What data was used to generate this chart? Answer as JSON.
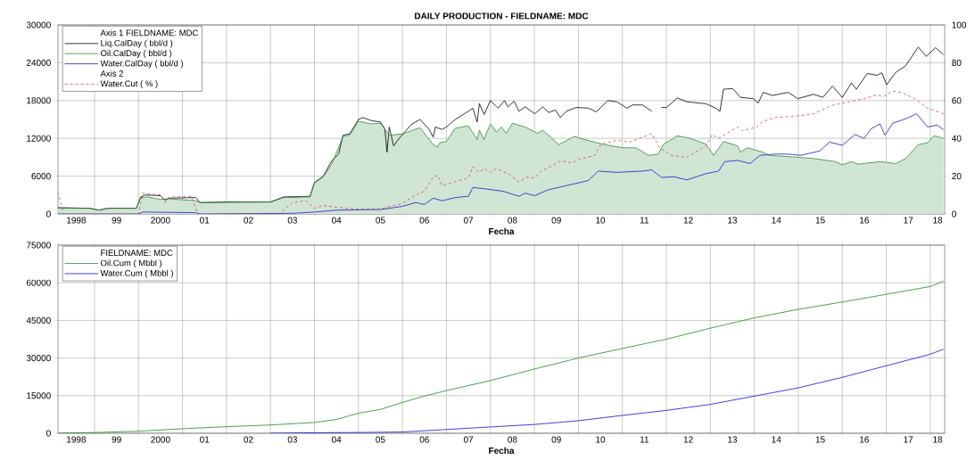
{
  "chart_data": [
    {
      "type": "line",
      "title": "DAILY PRODUCTION  -  FIELDNAME: MDC",
      "xlabel": "Fecha",
      "legend_title": "Axis 1  FIELDNAME: MDC",
      "annotations": [
        "Axis 2"
      ],
      "grid": true,
      "legend": "top left",
      "xlim": [
        "1998-03-02",
        "2018-04-29"
      ],
      "ylim": [
        0,
        30000
      ],
      "y2lim": [
        0,
        100
      ],
      "xticks": [
        {
          "value": "1999",
          "label": null
        },
        {
          "value": "2000",
          "label": null
        },
        {
          "value": "2001",
          "label": null
        },
        {
          "value": "2002",
          "label": null
        },
        {
          "value": "2003",
          "label": null
        },
        {
          "value": "2004",
          "label": null
        },
        {
          "value": "2005",
          "label": null
        },
        {
          "value": "2006",
          "label": null
        },
        {
          "value": "2007",
          "label": null
        },
        {
          "value": "2008",
          "label": null
        },
        {
          "value": "2009",
          "label": null
        },
        {
          "value": "2010",
          "label": null
        },
        {
          "value": "2011",
          "label": null
        },
        {
          "value": "2012",
          "label": null
        },
        {
          "value": "2013",
          "label": null
        },
        {
          "value": "2014",
          "label": null
        },
        {
          "value": "2015",
          "label": null
        },
        {
          "value": "2016",
          "label": null
        },
        {
          "value": "2017",
          "label": null
        },
        {
          "value": "2018",
          "label": null
        },
        {
          "value": "1998-08",
          "label": "1998"
        },
        {
          "value": "1999-07",
          "label": "99"
        },
        {
          "value": "2000-07",
          "label": "2000"
        },
        {
          "value": "2001-07",
          "label": "01"
        },
        {
          "value": "2002-07",
          "label": "02"
        },
        {
          "value": "2003-07",
          "label": "03"
        },
        {
          "value": "2004-07",
          "label": "04"
        },
        {
          "value": "2005-07",
          "label": "05"
        },
        {
          "value": "2006-07",
          "label": "06"
        },
        {
          "value": "2007-07",
          "label": "07"
        },
        {
          "value": "2008-07",
          "label": "08"
        },
        {
          "value": "2009-07",
          "label": "09"
        },
        {
          "value": "2010-07",
          "label": "10"
        },
        {
          "value": "2011-07",
          "label": "11"
        },
        {
          "value": "2012-07",
          "label": "12"
        },
        {
          "value": "2013-07",
          "label": "13"
        },
        {
          "value": "2014-07",
          "label": "14"
        },
        {
          "value": "2015-07",
          "label": "15"
        },
        {
          "value": "2016-07",
          "label": "16"
        },
        {
          "value": "2017-07",
          "label": "17"
        },
        {
          "value": "2018-03",
          "label": "18"
        }
      ],
      "yticks": [
        0,
        6000,
        12000,
        18000,
        24000,
        30000
      ],
      "y2ticks": [
        0,
        20,
        40,
        60,
        80,
        100
      ],
      "series": [
        {
          "name": "Liq.CalDay ( bbl/d )",
          "color": "#000000",
          "x": [
            "1998-03-02",
            "1998-11-25",
            "1999-02-07",
            "1999-04-19",
            "1999-12-13",
            "2000-01-19",
            "2000-02-25",
            "2000-07-01",
            "2000-08-07",
            "2000-09-13",
            "2001-04-19",
            "2001-05-25",
            "2002-01-01",
            "2003-01-01",
            "2003-04-19",
            "2003-11-25",
            "2004-01-01",
            "2004-03-13",
            "2004-05-25",
            "2004-07-19",
            "2004-08-25",
            "2004-10-19",
            "2005-01-01",
            "2005-02-07",
            "2005-04-19",
            "2005-07-01",
            "2005-08-07",
            "2005-08-25",
            "2005-09-13",
            "2005-10-19",
            "2005-12-13",
            "2006-03-13",
            "2006-05-25",
            "2006-08-07",
            "2006-09-13",
            "2006-10-01",
            "2006-11-25",
            "2007-01-01",
            "2007-03-13",
            "2007-07-01",
            "2007-08-07",
            "2007-09-13",
            "2007-10-01",
            "2007-11-10",
            "2008-01-01",
            "2008-03-05",
            "2008-04-26",
            "2008-05-25",
            "2008-07-15",
            "2008-08-25",
            "2008-10-15",
            "2009-01-04",
            "2009-03-09",
            "2009-04-29",
            "2009-06-23",
            "2009-08-03",
            "2009-09-23",
            "2009-12-13",
            "2010-03-23",
            "2010-05-28",
            "2010-09-02",
            "2010-11-17",
            "2011-02-07",
            "2011-03-27",
            "2011-06-16",
            "2011-09-02",
            "2011-10-11",
            "2011-11-21",
            "2012-01-01",
            "2012-04-01",
            "2012-06-20",
            "2012-11-25",
            "2013-02-14",
            "2013-03-20",
            "2013-04-19",
            "2013-07-04",
            "2013-09-09",
            "2013-12-23",
            "2014-02-03",
            "2014-03-13",
            "2014-05-28",
            "2014-10-08",
            "2014-12-27",
            "2015-05-07",
            "2015-07-22",
            "2015-10-11",
            "2016-01-01",
            "2016-03-16",
            "2016-04-26",
            "2016-07-26",
            "2016-10-15",
            "2016-11-25",
            "2017-01-04",
            "2017-03-20",
            "2017-06-09",
            "2017-09-23",
            "2017-11-28",
            "2018-02-14",
            "2018-04-19"
          ],
          "values": [
            1000,
            900,
            600,
            900,
            900,
            2700,
            3000,
            2900,
            2200,
            2500,
            2600,
            1800,
            1900,
            1900,
            2700,
            2800,
            5000,
            6000,
            8500,
            9500,
            12500,
            12700,
            15000,
            15300,
            14800,
            14600,
            13500,
            9800,
            13800,
            10800,
            12200,
            14200,
            15000,
            13500,
            12200,
            13800,
            13400,
            13800,
            15000,
            16300,
            16800,
            14600,
            17500,
            15800,
            18000,
            16800,
            18000,
            17000,
            17900,
            16300,
            17000,
            15900,
            17000,
            16100,
            16500,
            15300,
            16300,
            16900,
            16800,
            16200,
            18000,
            17800,
            16800,
            17300,
            17300,
            16300,
            null,
            16900,
            16900,
            18400,
            17800,
            17500,
            16800,
            16300,
            19800,
            19900,
            18500,
            18300,
            17600,
            19300,
            18800,
            19300,
            18300,
            19000,
            18500,
            20300,
            18500,
            20800,
            19800,
            22300,
            22000,
            22400,
            20500,
            22500,
            23500,
            26500,
            25000,
            26400,
            25300
          ]
        },
        {
          "name": "Oil.CalDay ( bbl/d )",
          "color": "#2e8b3a",
          "type": "area",
          "x": [
            "1998-03-02",
            "1998-11-25",
            "1999-02-07",
            "1999-04-19",
            "1999-12-13",
            "2000-01-19",
            "2000-03-13",
            "2000-07-01",
            "2000-09-13",
            "2001-04-19",
            "2001-05-25",
            "2003-01-01",
            "2003-04-19",
            "2003-11-25",
            "2004-01-01",
            "2004-03-13",
            "2004-05-25",
            "2004-08-25",
            "2004-10-19",
            "2005-01-01",
            "2005-04-19",
            "2005-07-01",
            "2005-09-13",
            "2006-01-01",
            "2006-05-25",
            "2006-09-13",
            "2006-10-19",
            "2006-11-07",
            "2007-01-01",
            "2007-03-13",
            "2007-07-01",
            "2007-09-13",
            "2007-10-01",
            "2007-11-07",
            "2008-01-01",
            "2008-02-21",
            "2008-04-01",
            "2008-05-10",
            "2008-07-01",
            "2008-10-15",
            "2009-01-29",
            "2009-03-09",
            "2009-05-25",
            "2009-07-19",
            "2009-11-28",
            "2010-02-25",
            "2010-08-03",
            "2011-01-11",
            "2011-04-22",
            "2011-08-07",
            "2011-10-26",
            "2011-12-05",
            "2012-04-01",
            "2012-07-15",
            "2012-11-25",
            "2013-01-29",
            "2013-04-19",
            "2013-08-14",
            "2013-09-09",
            "2013-11-03",
            "2014-03-13",
            "2014-05-03",
            "2014-12-27",
            "2015-05-07",
            "2015-11-07",
            "2016-01-01",
            "2016-03-16",
            "2016-05-10",
            "2016-11-10",
            "2017-03-20",
            "2017-06-09",
            "2017-09-23",
            "2017-12-09",
            "2018-02-03",
            "2018-04-19"
          ],
          "values": [
            900,
            900,
            600,
            900,
            900,
            2600,
            2700,
            2300,
            2400,
            2100,
            1800,
            1900,
            2600,
            2700,
            4900,
            5900,
            8000,
            12300,
            12500,
            14700,
            14300,
            14400,
            12500,
            12700,
            13700,
            11000,
            10600,
            11300,
            11500,
            13600,
            14000,
            11800,
            13300,
            11800,
            14300,
            13000,
            13800,
            12800,
            14400,
            13800,
            12800,
            13300,
            12000,
            11000,
            12300,
            11800,
            11000,
            10500,
            10500,
            9300,
            9500,
            11000,
            12400,
            12000,
            11100,
            9300,
            11500,
            10800,
            9800,
            10500,
            9800,
            9300,
            9000,
            8800,
            8300,
            7800,
            8300,
            7900,
            8300,
            8000,
            8800,
            11000,
            11300,
            12400,
            12000
          ]
        },
        {
          "name": "Water.CalDay ( bbl/d )",
          "color": "#1a1acc",
          "x": [
            "1998-03-02",
            "2000-01-01",
            "2000-02-07",
            "2001-04-19",
            "2001-05-25",
            "2003-07-01",
            "2004-01-01",
            "2004-07-01",
            "2005-07-01",
            "2006-01-01",
            "2006-04-19",
            "2006-07-01",
            "2006-09-13",
            "2006-11-25",
            "2007-03-13",
            "2007-07-01",
            "2007-08-07",
            "2007-11-10",
            "2008-04-15",
            "2008-08-25",
            "2008-10-15",
            "2009-01-04",
            "2009-04-19",
            "2009-09-23",
            "2010-03-23",
            "2010-06-13",
            "2010-11-17",
            "2011-06-16",
            "2011-09-02",
            "2011-11-21",
            "2012-03-05",
            "2012-06-20",
            "2012-11-25",
            "2013-03-09",
            "2013-04-29",
            "2013-08-14",
            "2013-11-28",
            "2014-02-17",
            "2014-06-23",
            "2014-10-08",
            "2015-01-22",
            "2015-06-27",
            "2015-09-16",
            "2016-01-01",
            "2016-04-15",
            "2016-07-01",
            "2016-08-25",
            "2016-11-10",
            "2016-12-20",
            "2017-02-25",
            "2017-06-09",
            "2017-09-09",
            "2017-12-09",
            "2018-02-28",
            "2018-04-19"
          ],
          "values": [
            0,
            0,
            300,
            200,
            0,
            100,
            300,
            600,
            700,
            1200,
            1800,
            1500,
            2500,
            2100,
            2600,
            2800,
            4200,
            4000,
            3600,
            2800,
            3300,
            2900,
            3800,
            4500,
            5300,
            6800,
            6600,
            6800,
            7000,
            5800,
            5900,
            5400,
            6400,
            6800,
            8300,
            8500,
            8000,
            9300,
            9500,
            9500,
            9300,
            10000,
            11400,
            10900,
            12600,
            12000,
            13500,
            14300,
            12500,
            14400,
            15100,
            15900,
            13800,
            14100,
            13400
          ]
        },
        {
          "name": "Water.Cut ( % )",
          "color": "#d04848",
          "axis": "y2",
          "line_style": "dashed",
          "x": [
            "1998-03-02",
            "1998-04-19",
            "2000-01-01",
            "2000-02-07",
            "2000-04-19",
            "2000-07-01",
            "2000-08-07",
            "2000-09-13",
            "2001-03-13",
            "2001-05-07",
            "2003-03-13",
            "2003-04-19",
            "2003-07-01",
            "2003-10-19",
            "2004-01-01",
            "2004-03-13",
            "2004-07-01",
            "2005-01-01",
            "2005-07-01",
            "2006-01-01",
            "2006-04-19",
            "2006-07-01",
            "2006-09-13",
            "2006-10-19",
            "2006-11-25",
            "2007-03-13",
            "2007-07-01",
            "2007-08-07",
            "2007-10-01",
            "2007-11-10",
            "2008-01-01",
            "2008-02-21",
            "2008-06-05",
            "2008-08-25",
            "2008-10-29",
            "2009-01-04",
            "2009-02-25",
            "2009-08-03",
            "2009-11-14",
            "2010-01-08",
            "2010-05-17",
            "2010-07-08",
            "2010-11-17",
            "2011-03-02",
            "2011-09-02",
            "2011-11-07",
            "2012-02-10",
            "2012-06-20",
            "2012-11-25",
            "2013-01-15",
            "2013-03-09",
            "2013-08-14",
            "2013-09-23",
            "2014-01-19",
            "2014-03-13",
            "2014-06-23",
            "2015-01-22",
            "2015-05-07",
            "2015-10-11",
            "2016-01-26",
            "2016-07-01",
            "2016-10-15",
            "2016-12-05",
            "2017-02-25",
            "2017-05-14",
            "2017-08-25",
            "2017-12-09",
            "2018-04-19"
          ],
          "values": [
            11.5,
            0,
            0,
            11,
            10.5,
            10,
            6,
            9,
            9.3,
            0,
            0,
            2,
            6,
            7,
            3,
            4.5,
            3.5,
            2.5,
            2.7,
            5.5,
            10,
            12,
            19.5,
            20.5,
            15,
            17,
            19,
            25,
            22,
            24,
            22,
            24,
            21,
            17,
            19.5,
            19,
            22.5,
            28,
            27,
            29,
            31,
            37,
            39,
            38,
            42.5,
            35,
            31,
            30,
            36,
            42,
            40,
            46,
            44,
            46,
            49,
            51,
            52,
            53,
            57.5,
            59,
            61,
            63,
            62,
            65,
            64,
            61,
            56,
            53
          ]
        }
      ]
    },
    {
      "type": "line",
      "xlabel": "Fecha",
      "legend_title": "FIELDNAME: MDC",
      "grid": true,
      "legend": "top left",
      "xlim": [
        "1998-03-02",
        "2018-04-29"
      ],
      "ylim": [
        0,
        75000
      ],
      "xticks": [
        {
          "value": "1999",
          "label": null
        },
        {
          "value": "2000",
          "label": null
        },
        {
          "value": "2001",
          "label": null
        },
        {
          "value": "2002",
          "label": null
        },
        {
          "value": "2003",
          "label": null
        },
        {
          "value": "2004",
          "label": null
        },
        {
          "value": "2005",
          "label": null
        },
        {
          "value": "2006",
          "label": null
        },
        {
          "value": "2007",
          "label": null
        },
        {
          "value": "2008",
          "label": null
        },
        {
          "value": "2009",
          "label": null
        },
        {
          "value": "2010",
          "label": null
        },
        {
          "value": "2011",
          "label": null
        },
        {
          "value": "2012",
          "label": null
        },
        {
          "value": "2013",
          "label": null
        },
        {
          "value": "2014",
          "label": null
        },
        {
          "value": "2015",
          "label": null
        },
        {
          "value": "2016",
          "label": null
        },
        {
          "value": "2017",
          "label": null
        },
        {
          "value": "2018",
          "label": null
        },
        {
          "value": "1998-08",
          "label": "1998"
        },
        {
          "value": "1999-07",
          "label": "99"
        },
        {
          "value": "2000-07",
          "label": "2000"
        },
        {
          "value": "2001-07",
          "label": "01"
        },
        {
          "value": "2002-07",
          "label": "02"
        },
        {
          "value": "2003-07",
          "label": "03"
        },
        {
          "value": "2004-07",
          "label": "04"
        },
        {
          "value": "2005-07",
          "label": "05"
        },
        {
          "value": "2006-07",
          "label": "06"
        },
        {
          "value": "2007-07",
          "label": "07"
        },
        {
          "value": "2008-07",
          "label": "08"
        },
        {
          "value": "2009-07",
          "label": "09"
        },
        {
          "value": "2010-07",
          "label": "10"
        },
        {
          "value": "2011-07",
          "label": "11"
        },
        {
          "value": "2012-07",
          "label": "12"
        },
        {
          "value": "2013-07",
          "label": "13"
        },
        {
          "value": "2014-07",
          "label": "14"
        },
        {
          "value": "2015-07",
          "label": "15"
        },
        {
          "value": "2016-07",
          "label": "16"
        },
        {
          "value": "2017-07",
          "label": "17"
        },
        {
          "value": "2018-03",
          "label": "18"
        }
      ],
      "yticks": [
        0,
        15000,
        30000,
        45000,
        60000,
        75000
      ],
      "series": [
        {
          "name": "Oil.Cum ( Mbbl )",
          "color": "#1f8a1f",
          "x": [
            "1998-03-02",
            "1999",
            "2000",
            "2001",
            "2002",
            "2003",
            "2004",
            "2004-07",
            "2005",
            "2005-07",
            "2006",
            "2006-07",
            "2007",
            "2007-07",
            "2008",
            "2009",
            "2010",
            "2011",
            "2012",
            "2013",
            "2014",
            "2015",
            "2016",
            "2017",
            "2018",
            "2018-04-19"
          ],
          "values": [
            0,
            300,
            800,
            1800,
            2600,
            3300,
            4300,
            5500,
            8000,
            9500,
            12300,
            14800,
            17000,
            19000,
            21000,
            25600,
            30000,
            33800,
            37500,
            41900,
            46000,
            49400,
            52300,
            55400,
            58500,
            60600
          ]
        },
        {
          "name": "Water.Cum ( Mbbl )",
          "color": "#1010dd",
          "x": [
            "2003",
            "2004",
            "2005",
            "2006",
            "2007",
            "2008",
            "2009",
            "2010",
            "2011",
            "2012",
            "2013",
            "2014",
            "2015",
            "2016",
            "2017",
            "2018",
            "2018-04-19"
          ],
          "values": [
            0,
            200,
            300,
            500,
            1500,
            2500,
            3500,
            5000,
            7100,
            9100,
            11500,
            14800,
            18100,
            22300,
            26900,
            31500,
            33500
          ]
        }
      ]
    }
  ]
}
